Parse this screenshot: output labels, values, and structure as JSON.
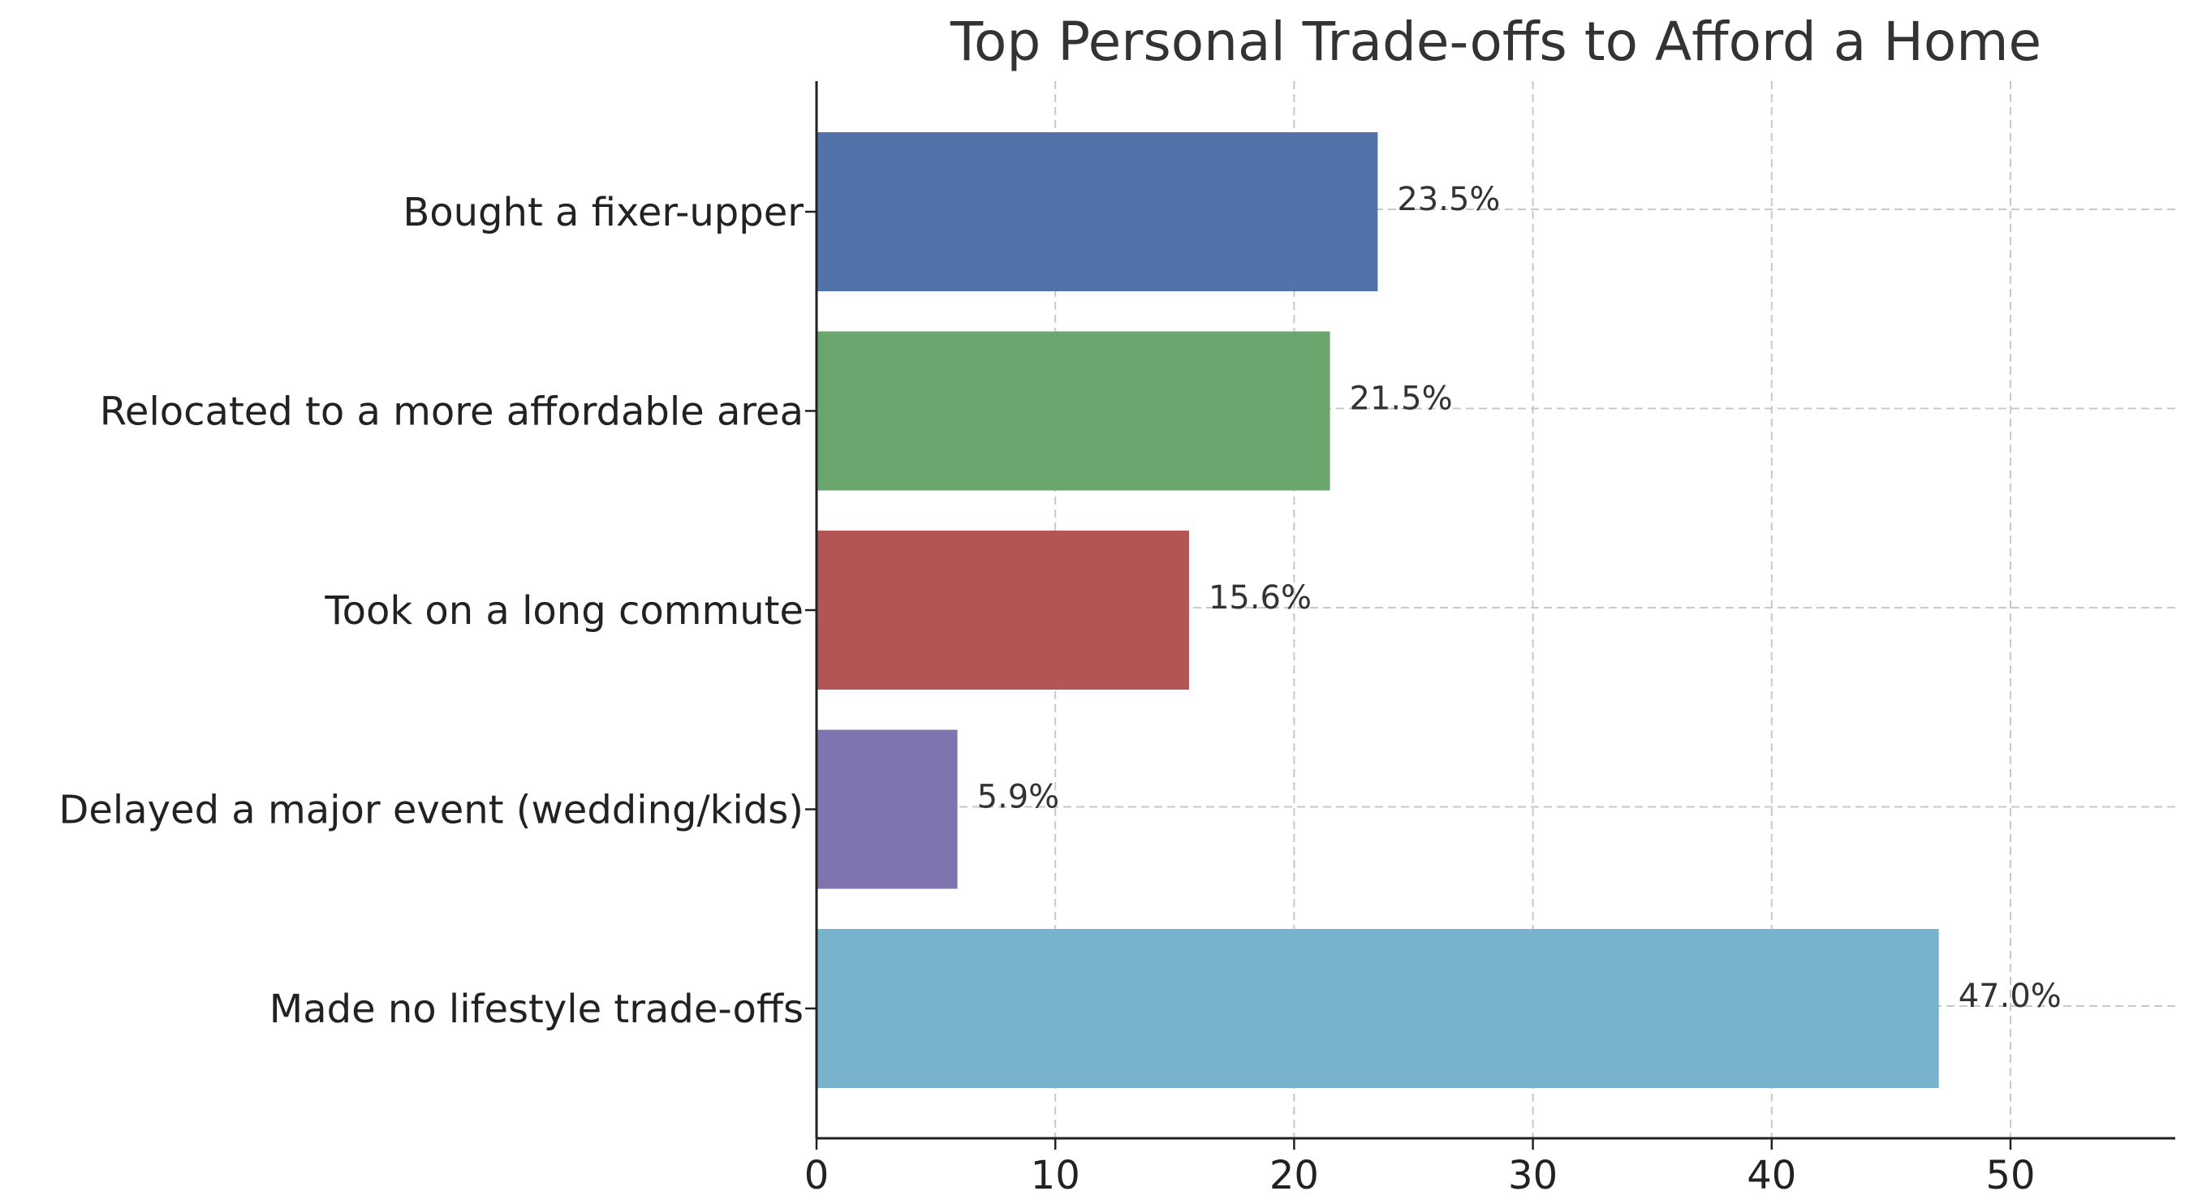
{
  "chart_data": {
    "type": "bar",
    "orientation": "horizontal",
    "title": "Top Personal Trade-offs to Afford a Home",
    "xlabel": "",
    "ylabel": "",
    "categories": [
      "Bought a fixer-upper",
      "Relocated to a more affordable area",
      "Took on a long commute",
      "Delayed a major event (wedding/kids)",
      "Made no lifestyle trade-offs"
    ],
    "values": [
      23.5,
      21.5,
      15.6,
      5.9,
      47.0
    ],
    "value_labels": [
      "23.5%",
      "21.5%",
      "15.6%",
      "5.9%",
      "47.0%"
    ],
    "colors": [
      "#5272aa",
      "#69a56c",
      "#b35554",
      "#7f74ad",
      "#79b2cc"
    ],
    "xlim": [
      0,
      57
    ],
    "xticks": [
      0,
      10,
      20,
      30,
      40,
      50
    ],
    "xtick_labels": [
      "0",
      "10",
      "20",
      "30",
      "40",
      "50"
    ],
    "grid": true
  }
}
